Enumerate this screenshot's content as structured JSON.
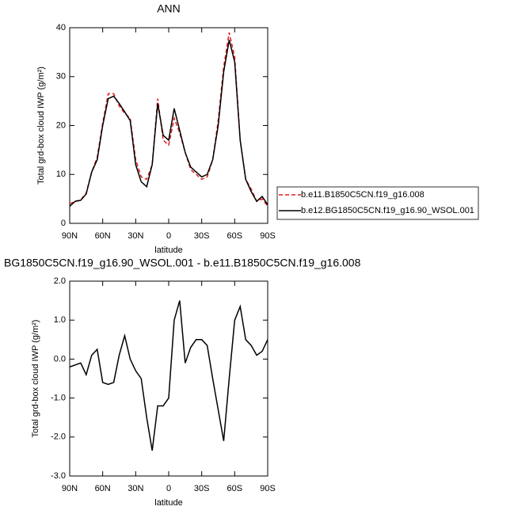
{
  "chart_data": [
    {
      "type": "line",
      "title": "ANN",
      "x_label": "latitude",
      "y_label": "Total grd-box cloud IWP (g/m²)",
      "x": [
        90,
        85,
        80,
        75,
        70,
        65,
        60,
        55,
        50,
        45,
        40,
        35,
        30,
        25,
        20,
        15,
        10,
        5,
        0,
        -5,
        -10,
        -15,
        -20,
        -25,
        -30,
        -35,
        -40,
        -45,
        -50,
        -55,
        -60,
        -65,
        -70,
        -75,
        -80,
        -85,
        -90
      ],
      "xlim": [
        90,
        -90
      ],
      "xticks": [
        {
          "value": 90,
          "label": "90N"
        },
        {
          "value": 60,
          "label": "60N"
        },
        {
          "value": 30,
          "label": "30N"
        },
        0,
        {
          "value": -30,
          "label": "30S"
        },
        {
          "value": -60,
          "label": "60S"
        },
        {
          "value": -90,
          "label": "90S"
        }
      ],
      "ylim": [
        0,
        40
      ],
      "yticks": [
        0,
        10,
        20,
        30,
        40
      ],
      "series": [
        {
          "name": "b.e11.B1850C5CN.f19_g16.008",
          "color": "#e41a1c",
          "line_style": "dashed",
          "values": [
            4,
            4.5,
            4.8,
            6.2,
            10.5,
            13.5,
            20.5,
            26.5,
            26.5,
            24,
            22.5,
            21.5,
            13,
            9.5,
            9,
            12,
            25.5,
            17,
            16,
            21.5,
            18.5,
            14.5,
            11,
            10,
            9,
            9.5,
            13,
            21,
            32,
            39,
            34,
            17,
            9,
            7,
            4.5,
            5,
            3.5
          ]
        },
        {
          "name": "b.e12.BG1850C5CN.f19_g16.90_WSOL.001",
          "color": "#000000",
          "line_style": "solid",
          "values": [
            3.5,
            4.5,
            4.7,
            6,
            10.5,
            13,
            20,
            25.5,
            26,
            24.5,
            22.8,
            21,
            12,
            8.5,
            7.5,
            12,
            24.5,
            18,
            17,
            23.5,
            19,
            14.5,
            11.5,
            10.5,
            9.5,
            10,
            13,
            20,
            31,
            37.5,
            33,
            17,
            9,
            6.5,
            4.5,
            5.5,
            3.8
          ]
        }
      ]
    },
    {
      "type": "line",
      "title": "BG1850C5CN.f19_g16.90_WSOL.001 - b.e11.B1850C5CN.f19_g16.008",
      "x_label": "latitude",
      "y_label": "Total grd-box cloud IWP (g/m²)",
      "x": [
        90,
        85,
        80,
        75,
        70,
        65,
        60,
        55,
        50,
        45,
        40,
        35,
        30,
        25,
        20,
        15,
        10,
        5,
        0,
        -5,
        -10,
        -15,
        -20,
        -25,
        -30,
        -35,
        -40,
        -45,
        -50,
        -55,
        -60,
        -65,
        -70,
        -75,
        -80,
        -85,
        -90
      ],
      "xlim": [
        90,
        -90
      ],
      "xticks": [
        {
          "value": 90,
          "label": "90N"
        },
        {
          "value": 60,
          "label": "60N"
        },
        {
          "value": 30,
          "label": "30N"
        },
        0,
        {
          "value": -30,
          "label": "30S"
        },
        {
          "value": -60,
          "label": "60S"
        },
        {
          "value": -90,
          "label": "90S"
        }
      ],
      "ylim": [
        -3,
        2
      ],
      "yticks": [
        {
          "value": -3,
          "label": "-3.0"
        },
        {
          "value": -2,
          "label": "-2.0"
        },
        {
          "value": -1,
          "label": "-1.0"
        },
        {
          "value": 0,
          "label": "0.0"
        },
        {
          "value": 1,
          "label": "1.0"
        },
        {
          "value": 2,
          "label": "2.0"
        }
      ],
      "series": [
        {
          "color": "#000000",
          "line_style": "solid",
          "values": [
            -0.2,
            -0.15,
            -0.1,
            -0.4,
            0.1,
            0.25,
            -0.6,
            -0.65,
            -0.6,
            0.1,
            0.6,
            0.0,
            -0.3,
            -0.5,
            -1.5,
            -2.35,
            -1.2,
            -1.2,
            -1.0,
            1.0,
            1.5,
            -0.1,
            0.3,
            0.5,
            0.5,
            0.35,
            -0.5,
            -1.3,
            -2.1,
            -0.5,
            1.0,
            1.35,
            0.5,
            0.35,
            0.1,
            0.2,
            0.5
          ]
        }
      ]
    }
  ]
}
